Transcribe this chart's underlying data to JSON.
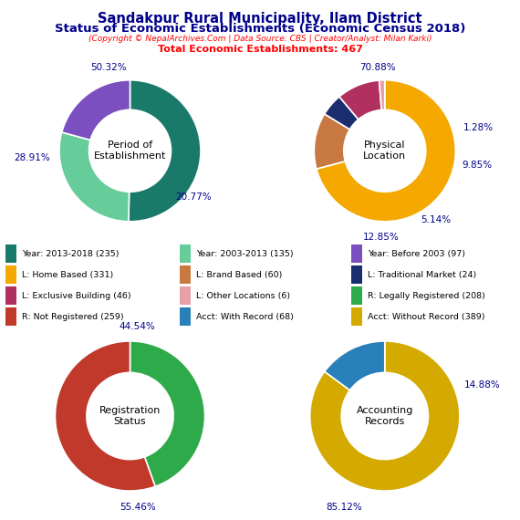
{
  "title_line1": "Sandakpur Rural Municipality, Ilam District",
  "title_line2": "Status of Economic Establishments (Economic Census 2018)",
  "subtitle": "(Copyright © NepalArchives.Com | Data Source: CBS | Creator/Analyst: Milan Karki)",
  "total_line": "Total Economic Establishments: 467",
  "donut1_label": "Period of\nEstablishment",
  "donut1_values": [
    50.32,
    28.91,
    20.77
  ],
  "donut1_colors": [
    "#1a7a6a",
    "#66cc99",
    "#7b4fbf"
  ],
  "donut2_label": "Physical\nLocation",
  "donut2_values": [
    70.88,
    12.85,
    5.14,
    9.85,
    1.28
  ],
  "donut2_colors": [
    "#f5a800",
    "#c87941",
    "#1a2d6e",
    "#b03060",
    "#e8a0a8"
  ],
  "donut3_label": "Registration\nStatus",
  "donut3_values": [
    44.54,
    55.46
  ],
  "donut3_colors": [
    "#2eaa4a",
    "#c0392b"
  ],
  "donut4_label": "Accounting\nRecords",
  "donut4_values": [
    85.12,
    14.88
  ],
  "donut4_colors": [
    "#d4aa00",
    "#2980b9"
  ],
  "legend_items": [
    {
      "label": "Year: 2013-2018 (235)",
      "color": "#1a7a6a"
    },
    {
      "label": "Year: 2003-2013 (135)",
      "color": "#66cc99"
    },
    {
      "label": "Year: Before 2003 (97)",
      "color": "#7b4fbf"
    },
    {
      "label": "L: Home Based (331)",
      "color": "#f5a800"
    },
    {
      "label": "L: Brand Based (60)",
      "color": "#c87941"
    },
    {
      "label": "L: Traditional Market (24)",
      "color": "#1a2d6e"
    },
    {
      "label": "L: Exclusive Building (46)",
      "color": "#b03060"
    },
    {
      "label": "L: Other Locations (6)",
      "color": "#e8a0a8"
    },
    {
      "label": "R: Legally Registered (208)",
      "color": "#2eaa4a"
    },
    {
      "label": "R: Not Registered (259)",
      "color": "#c0392b"
    },
    {
      "label": "Acct: With Record (68)",
      "color": "#2980b9"
    },
    {
      "label": "Acct: Without Record (389)",
      "color": "#d4aa00"
    }
  ]
}
